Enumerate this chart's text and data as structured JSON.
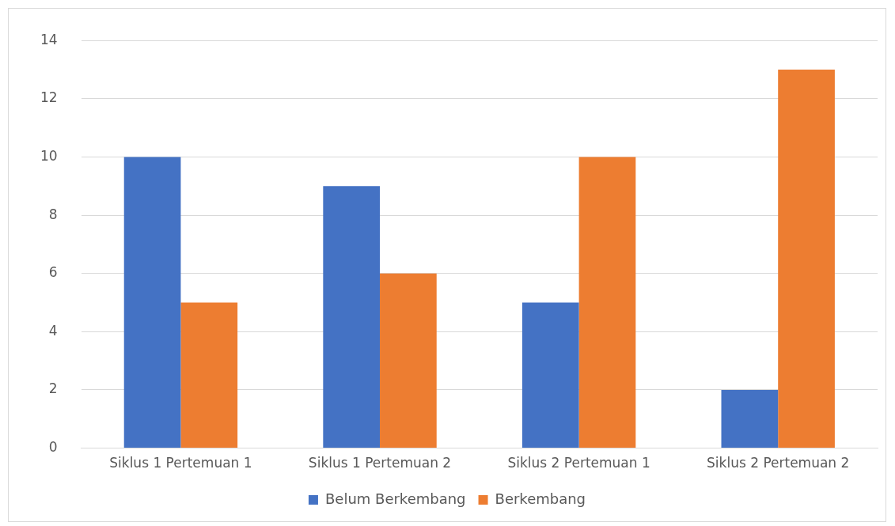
{
  "chart_data": {
    "type": "bar",
    "categories": [
      "Siklus 1 Pertemuan 1",
      "Siklus 1 Pertemuan 2",
      "Siklus 2 Pertemuan 1",
      "Siklus 2 Pertemuan 2"
    ],
    "series": [
      {
        "name": "Belum Berkembang",
        "color": "#4472c4",
        "values": [
          10,
          9,
          5,
          2
        ]
      },
      {
        "name": "Berkembang",
        "color": "#ed7d31",
        "values": [
          5,
          6,
          10,
          13
        ]
      }
    ],
    "ylim": [
      0,
      14
    ],
    "yticks": [
      0,
      2,
      4,
      6,
      8,
      10,
      12,
      14
    ],
    "grid": "y",
    "legend": "bottom"
  }
}
